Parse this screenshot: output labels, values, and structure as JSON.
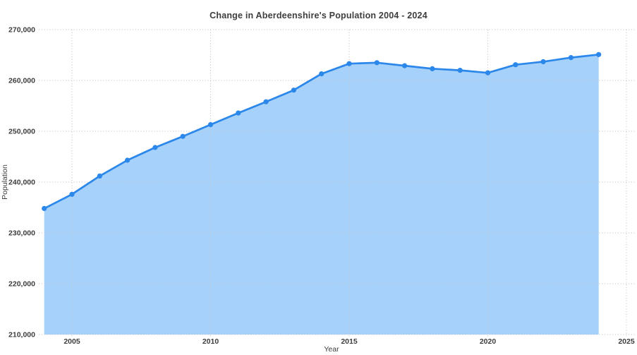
{
  "chart_data": {
    "type": "area",
    "title": "Change in Aberdeenshire's Population 2004 - 2024",
    "xlabel": "Year",
    "ylabel": "Population",
    "x": [
      2004,
      2005,
      2006,
      2007,
      2008,
      2009,
      2010,
      2011,
      2012,
      2013,
      2014,
      2015,
      2016,
      2017,
      2018,
      2019,
      2020,
      2021,
      2022,
      2023,
      2024
    ],
    "values": [
      234800,
      237600,
      241200,
      244300,
      246800,
      249000,
      251300,
      253600,
      255800,
      258100,
      261300,
      263300,
      263500,
      262900,
      262300,
      262000,
      261500,
      263100,
      263700,
      264500,
      265100
    ],
    "xlim": [
      2004,
      2025
    ],
    "ylim": [
      210000,
      270000
    ],
    "x_ticks": [
      2005,
      2010,
      2015,
      2020,
      2025
    ],
    "y_ticks": [
      210000,
      220000,
      230000,
      240000,
      250000,
      260000,
      270000
    ],
    "grid": "dotted",
    "legend": "none",
    "colors": {
      "line": "#2b87ea",
      "fill": "#a6d1fa",
      "marker": "#2b87ea",
      "grid": "#c2c6cc",
      "text": "#3d3d3d"
    }
  }
}
